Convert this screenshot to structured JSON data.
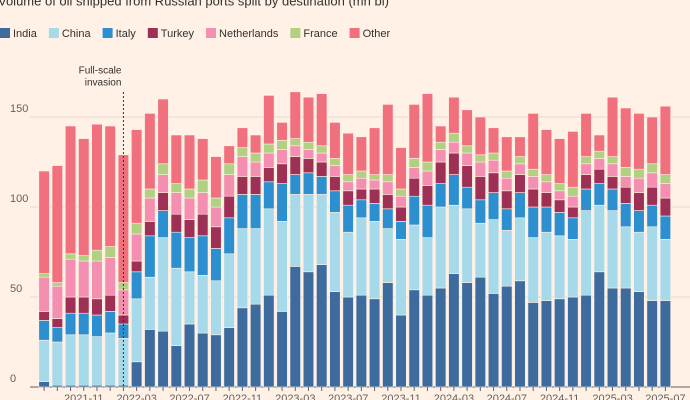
{
  "chart_data": {
    "type": "stacked_bar",
    "title": "Volume of oil shipped from Russian ports split by destination (mn bl)",
    "annotation": [
      "Full-scale",
      "invasion"
    ],
    "categories": [
      null,
      null,
      null,
      "2021-11",
      null,
      null,
      null,
      "2022-03",
      null,
      null,
      null,
      "2022-07",
      null,
      null,
      null,
      "2022-11",
      null,
      null,
      null,
      "2023-03",
      null,
      null,
      null,
      "2023-07",
      null,
      null,
      null,
      "2023-11",
      null,
      null,
      null,
      "2024-03",
      null,
      null,
      null,
      "2024-07",
      null,
      null,
      null,
      "2024-11",
      null,
      null,
      null,
      "2025-03",
      null,
      null,
      null,
      "2025-07"
    ],
    "series": [
      {
        "name": "India",
        "color": "#3d6b9e",
        "values": [
          3,
          1,
          1,
          1,
          1,
          1,
          1,
          14,
          32,
          31,
          23,
          35,
          30,
          29,
          33,
          44,
          46,
          51,
          42,
          67,
          64,
          68,
          53,
          50,
          51,
          49,
          58,
          40,
          54,
          51,
          55,
          63,
          58,
          61,
          52,
          56,
          59,
          47,
          48,
          49,
          50,
          51,
          64,
          55,
          55,
          53,
          48,
          48
        ]
      },
      {
        "name": "China",
        "color": "#a6d9ea",
        "values": [
          23,
          24,
          28,
          28,
          27,
          29,
          26,
          35,
          29,
          52,
          43,
          29,
          32,
          30,
          41,
          44,
          42,
          48,
          50,
          40,
          43,
          39,
          44,
          36,
          43,
          43,
          30,
          42,
          36,
          32,
          45,
          38,
          41,
          30,
          41,
          31,
          35,
          36,
          38,
          35,
          32,
          47,
          37,
          43,
          34,
          33,
          41,
          34
        ]
      },
      {
        "name": "Italy",
        "color": "#2b8fd0",
        "values": [
          11,
          8,
          12,
          12,
          12,
          12,
          8,
          15,
          23,
          15,
          20,
          19,
          22,
          18,
          20,
          19,
          19,
          15,
          21,
          11,
          12,
          10,
          12,
          15,
          10,
          10,
          11,
          10,
          16,
          18,
          13,
          17,
          12,
          13,
          15,
          12,
          14,
          17,
          14,
          13,
          12,
          12,
          12,
          12,
          13,
          12,
          12,
          13
        ]
      },
      {
        "name": "Turkey",
        "color": "#9e2f55",
        "values": [
          5,
          5,
          9,
          9,
          9,
          9,
          5,
          6,
          8,
          10,
          10,
          10,
          12,
          12,
          12,
          10,
          10,
          8,
          11,
          10,
          8,
          8,
          8,
          8,
          6,
          8,
          8,
          8,
          10,
          11,
          12,
          12,
          12,
          13,
          11,
          10,
          10,
          10,
          8,
          7,
          6,
          8,
          8,
          7,
          9,
          10,
          10,
          10
        ]
      },
      {
        "name": "Netherlands",
        "color": "#f48fb1",
        "values": [
          19,
          18,
          21,
          20,
          21,
          21,
          14,
          15,
          13,
          10,
          12,
          12,
          12,
          11,
          12,
          11,
          8,
          8,
          8,
          6,
          5,
          5,
          6,
          5,
          6,
          5,
          7,
          6,
          6,
          8,
          7,
          6,
          7,
          8,
          7,
          7,
          6,
          7,
          6,
          5,
          6,
          6,
          6,
          7,
          6,
          8,
          8,
          8
        ]
      },
      {
        "name": "France",
        "color": "#b0d182",
        "values": [
          2,
          2,
          3,
          3,
          6,
          6,
          4,
          6,
          5,
          6,
          5,
          5,
          7,
          5,
          6,
          5,
          5,
          5,
          5,
          4,
          4,
          4,
          4,
          4,
          4,
          3,
          4,
          4,
          5,
          5,
          4,
          5,
          4,
          4,
          4,
          4,
          4,
          4,
          4,
          4,
          5,
          4,
          4,
          4,
          5,
          5,
          5,
          5
        ]
      },
      {
        "name": "Other",
        "color": "#f0707d",
        "values": [
          57,
          65,
          71,
          65,
          70,
          67,
          71,
          52,
          42,
          36,
          27,
          30,
          23,
          23,
          10,
          11,
          10,
          27,
          10,
          26,
          25,
          29,
          20,
          23,
          19,
          26,
          39,
          23,
          30,
          38,
          9,
          20,
          20,
          21,
          14,
          19,
          11,
          31,
          25,
          25,
          31,
          24,
          9,
          33,
          33,
          31,
          26,
          38
        ]
      }
    ],
    "ylim": [
      0,
      180
    ],
    "yticks": [
      0,
      50,
      100,
      150
    ],
    "grid": true
  }
}
